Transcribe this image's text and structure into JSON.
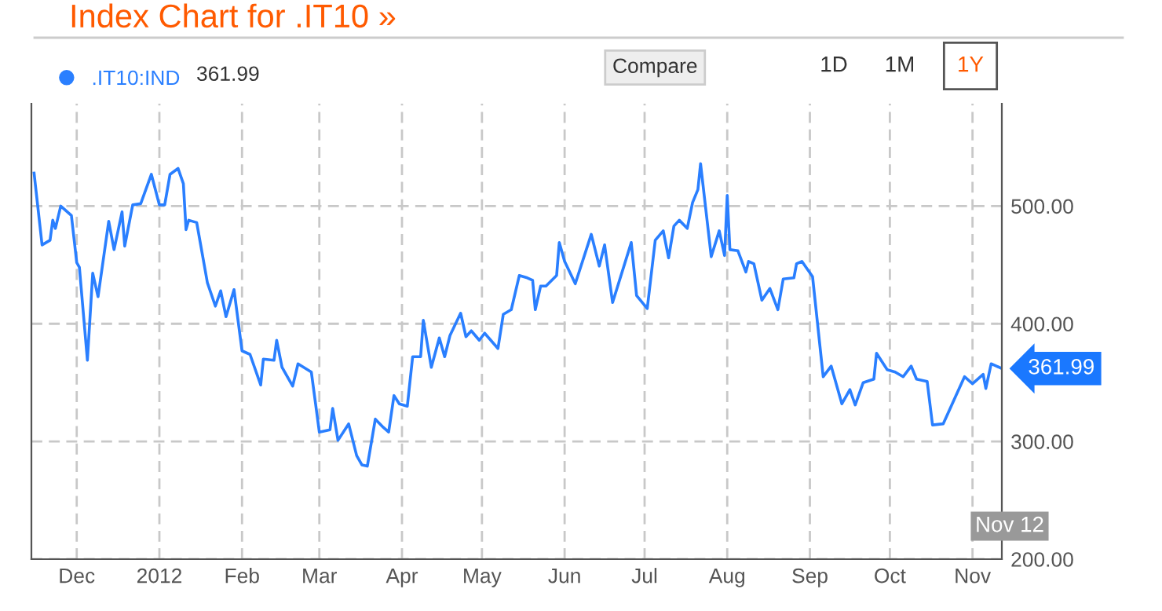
{
  "chart_data": {
    "type": "line",
    "title": "Index Chart for .IT10 »",
    "x": [
      "2011-11-15",
      "2011-11-18",
      "2011-11-21",
      "2011-11-22",
      "2011-11-23",
      "2011-11-25",
      "2011-11-29",
      "2011-12-01",
      "2011-12-02",
      "2011-12-05",
      "2011-12-07",
      "2011-12-09",
      "2011-12-13",
      "2011-12-15",
      "2011-12-18",
      "2011-12-19",
      "2011-12-22",
      "2011-12-25",
      "2011-12-29",
      "2012-01-01",
      "2012-01-03",
      "2012-01-05",
      "2012-01-08",
      "2012-01-10",
      "2012-01-11",
      "2012-01-12",
      "2012-01-15",
      "2012-01-19",
      "2012-01-22",
      "2012-01-24",
      "2012-01-26",
      "2012-01-29",
      "2012-02-01",
      "2012-02-04",
      "2012-02-08",
      "2012-02-09",
      "2012-02-13",
      "2012-02-14",
      "2012-02-16",
      "2012-02-20",
      "2012-02-22",
      "2012-02-27",
      "2012-03-01",
      "2012-03-05",
      "2012-03-06",
      "2012-03-08",
      "2012-03-12",
      "2012-03-15",
      "2012-03-17",
      "2012-03-19",
      "2012-03-22",
      "2012-03-25",
      "2012-03-27",
      "2012-03-29",
      "2012-03-31",
      "2012-04-03",
      "2012-04-05",
      "2012-04-08",
      "2012-04-09",
      "2012-04-12",
      "2012-04-15",
      "2012-04-17",
      "2012-04-19",
      "2012-04-23",
      "2012-04-25",
      "2012-04-27",
      "2012-04-30",
      "2012-05-02",
      "2012-05-07",
      "2012-05-09",
      "2012-05-12",
      "2012-05-15",
      "2012-05-18",
      "2012-05-20",
      "2012-05-21",
      "2012-05-23",
      "2012-05-25",
      "2012-05-29",
      "2012-05-30",
      "2012-06-01",
      "2012-06-05",
      "2012-06-11",
      "2012-06-14",
      "2012-06-16",
      "2012-06-19",
      "2012-06-26",
      "2012-06-28",
      "2012-07-02",
      "2012-07-05",
      "2012-07-08",
      "2012-07-10",
      "2012-07-12",
      "2012-07-14",
      "2012-07-17",
      "2012-07-19",
      "2012-07-21",
      "2012-07-22",
      "2012-07-26",
      "2012-07-29",
      "2012-07-31",
      "2012-08-01",
      "2012-08-02",
      "2012-08-05",
      "2012-08-08",
      "2012-08-09",
      "2012-08-11",
      "2012-08-14",
      "2012-08-17",
      "2012-08-20",
      "2012-08-22",
      "2012-08-26",
      "2012-08-27",
      "2012-08-29",
      "2012-09-02",
      "2012-09-06",
      "2012-09-09",
      "2012-09-13",
      "2012-09-16",
      "2012-09-18",
      "2012-09-21",
      "2012-09-25",
      "2012-09-26",
      "2012-09-30",
      "2012-10-03",
      "2012-10-06",
      "2012-10-09",
      "2012-10-11",
      "2012-10-15",
      "2012-10-17",
      "2012-10-21",
      "2012-10-24",
      "2012-10-29",
      "2012-11-01",
      "2012-11-05",
      "2012-11-06",
      "2012-11-08",
      "2012-11-12"
    ],
    "series": [
      {
        "name": ".IT10:IND",
        "color": "#2a7fff",
        "values": [
          528,
          467,
          471,
          488,
          481,
          500,
          492,
          452,
          448,
          369,
          443,
          423,
          487,
          463,
          495,
          466,
          501,
          502,
          527,
          501,
          501,
          527,
          532,
          519,
          480,
          488,
          486,
          435,
          415,
          428,
          406,
          429,
          377,
          374,
          348,
          370,
          369,
          386,
          363,
          347,
          366,
          359,
          308,
          310,
          328,
          301,
          315,
          288,
          280,
          279,
          319,
          312,
          308,
          339,
          332,
          330,
          372,
          372,
          403,
          363,
          388,
          372,
          390,
          409,
          389,
          394,
          386,
          392,
          379,
          408,
          412,
          441,
          439,
          437,
          412,
          432,
          432,
          441,
          469,
          453,
          434,
          476,
          449,
          467,
          418,
          469,
          424,
          413,
          471,
          479,
          456,
          483,
          488,
          481,
          503,
          514,
          536,
          457,
          479,
          458,
          509,
          463,
          462,
          444,
          453,
          451,
          420,
          430,
          412,
          438,
          439,
          451,
          453,
          440,
          355,
          364,
          332,
          344,
          331,
          350,
          353,
          375,
          361,
          359,
          355,
          364,
          353,
          351,
          314,
          315,
          330,
          355,
          349,
          357,
          345,
          366,
          361.99
        ]
      }
    ],
    "xlim": [
      "2011-11-14",
      "2012-11-12"
    ],
    "xticks": [
      {
        "value": "2011-12-01",
        "label": "Dec"
      },
      {
        "value": "2012-01-01",
        "label": "2012"
      },
      {
        "value": "2012-02-01",
        "label": "Feb"
      },
      {
        "value": "2012-03-01",
        "label": "Mar"
      },
      {
        "value": "2012-04-01",
        "label": "Apr"
      },
      {
        "value": "2012-05-01",
        "label": "May"
      },
      {
        "value": "2012-06-01",
        "label": "Jun"
      },
      {
        "value": "2012-07-01",
        "label": "Jul"
      },
      {
        "value": "2012-08-01",
        "label": "Aug"
      },
      {
        "value": "2012-09-01",
        "label": "Sep"
      },
      {
        "value": "2012-10-01",
        "label": "Oct"
      },
      {
        "value": "2012-11-01",
        "label": "Nov"
      }
    ],
    "ylim": [
      200,
      587
    ],
    "yticks": [
      {
        "value": 200,
        "label": "200.00"
      },
      {
        "value": 300,
        "label": "300.00"
      },
      {
        "value": 400,
        "label": "400.00"
      },
      {
        "value": 500,
        "label": "500.00"
      }
    ],
    "grid": true,
    "legend": "top left",
    "marker": "none",
    "line_style": "solid",
    "annotations": [
      {
        "text": "361.99",
        "x": "2012-11-12",
        "y": 361.99
      },
      "361.99",
      "Compare",
      "1D",
      "1M",
      "1Y",
      "Nov 12"
    ]
  }
}
